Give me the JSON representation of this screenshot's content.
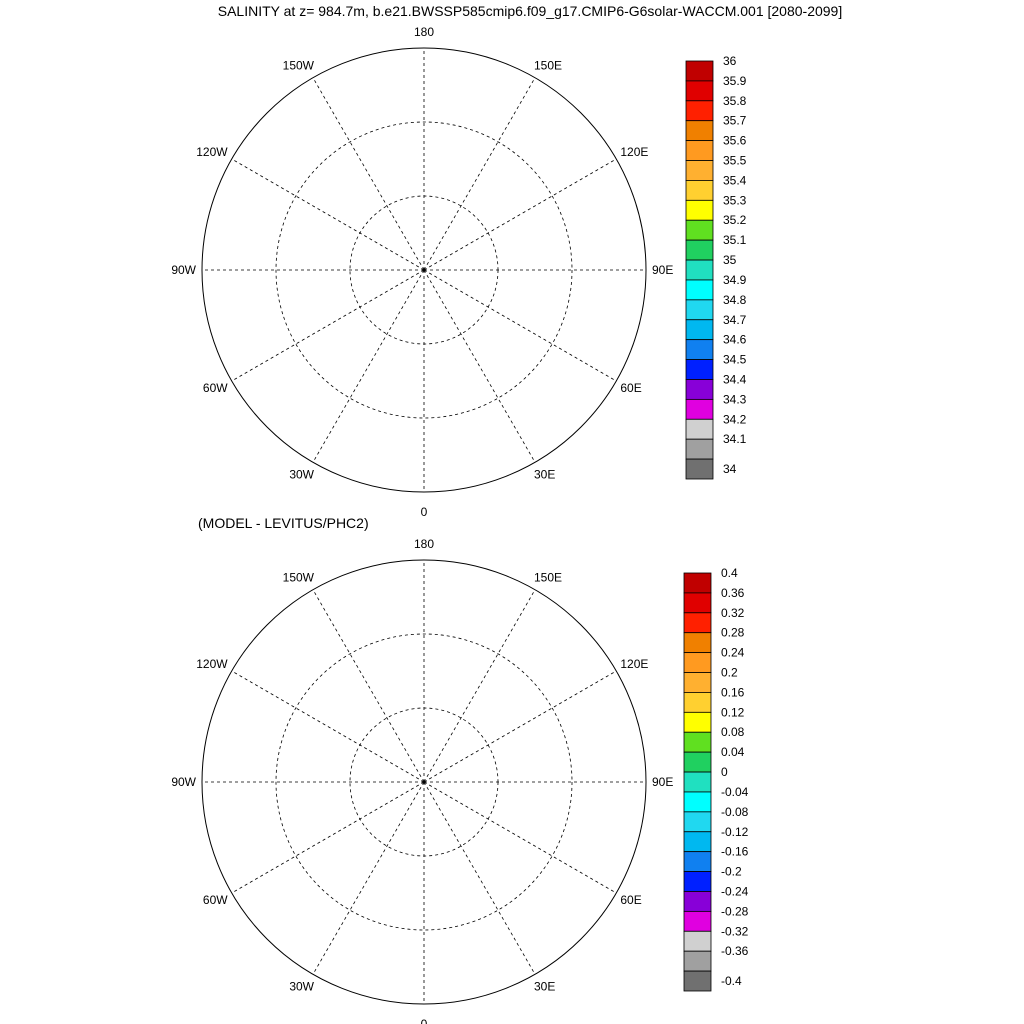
{
  "title": "SALINITY at z= 984.7m, b.e21.BWSSP585cmip6.f09_g17.CMIP6-G6solar-WACCM.001 [2080-2099]",
  "diff_title": "(MODEL - LEVITUS/PHC2)",
  "longitude_labels": {
    "lon_180": "180",
    "lon_150W": "150W",
    "lon_150E": "150E",
    "lon_120W": "120W",
    "lon_120E": "120E",
    "lon_90W": "90W",
    "lon_90E": "90E",
    "lon_60W": "60W",
    "lon_60E": "60E",
    "lon_30W": "30W",
    "lon_30E": "30E",
    "lon_0": "0"
  },
  "colorbar_top": {
    "labels": [
      "36",
      "35.9",
      "35.8",
      "35.7",
      "35.6",
      "35.5",
      "35.4",
      "35.3",
      "35.2",
      "35.1",
      "35",
      "34.9",
      "34.8",
      "34.7",
      "34.6",
      "34.5",
      "34.4",
      "34.3",
      "34.2",
      "34.1",
      "34"
    ],
    "colors": [
      "#c00000",
      "#e00000",
      "#ff2000",
      "#f08000",
      "#ff9a20",
      "#ffb030",
      "#ffd030",
      "#ffff00",
      "#60e020",
      "#20d060",
      "#20e0c0",
      "#00ffff",
      "#20d8f0",
      "#00b8f0",
      "#1080f0",
      "#0020ff",
      "#8800d8",
      "#e000e0",
      "#d0d0d0",
      "#a0a0a0",
      "#707070"
    ]
  },
  "colorbar_bottom": {
    "labels": [
      "0.4",
      "0.36",
      "0.32",
      "0.28",
      "0.24",
      "0.2",
      "0.16",
      "0.12",
      "0.08",
      "0.04",
      "0",
      "-0.04",
      "-0.08",
      "-0.12",
      "-0.16",
      "-0.2",
      "-0.24",
      "-0.28",
      "-0.32",
      "-0.36",
      "-0.4"
    ],
    "colors": [
      "#c00000",
      "#e00000",
      "#ff2000",
      "#f08000",
      "#ff9a20",
      "#ffb030",
      "#ffd030",
      "#ffff00",
      "#60e020",
      "#20d060",
      "#20e0c0",
      "#00ffff",
      "#20d8f0",
      "#00b8f0",
      "#1080f0",
      "#0020ff",
      "#8800d8",
      "#e000e0",
      "#d0d0d0",
      "#a0a0a0",
      "#707070"
    ]
  },
  "fields": {
    "top": {
      "main_basin": "#00ffff",
      "fram_strait": "#00ffff",
      "nordic_seas": "#20e0c0",
      "baffin_bay": "#1080f0",
      "labrador_sea": "#20d060",
      "labrador_core": "#60e020",
      "irminger_sea": "#60e020",
      "iceland_basin": "#ffff00",
      "bering_strait": "#e000e0"
    },
    "bottom": {
      "main_basin": "#20d8f0",
      "interior": "#20e0c0",
      "fram_strait": "#20d8f0",
      "nordic_seas": "#20d060",
      "baffin_bay": "#8800d8",
      "baffin_tail": "#0020ff",
      "labrador_sea": "#ffb030",
      "irminger_sea": "#ffd030",
      "iceland_basin": "#ffb030",
      "bering_strait": "#1080f0"
    }
  }
}
